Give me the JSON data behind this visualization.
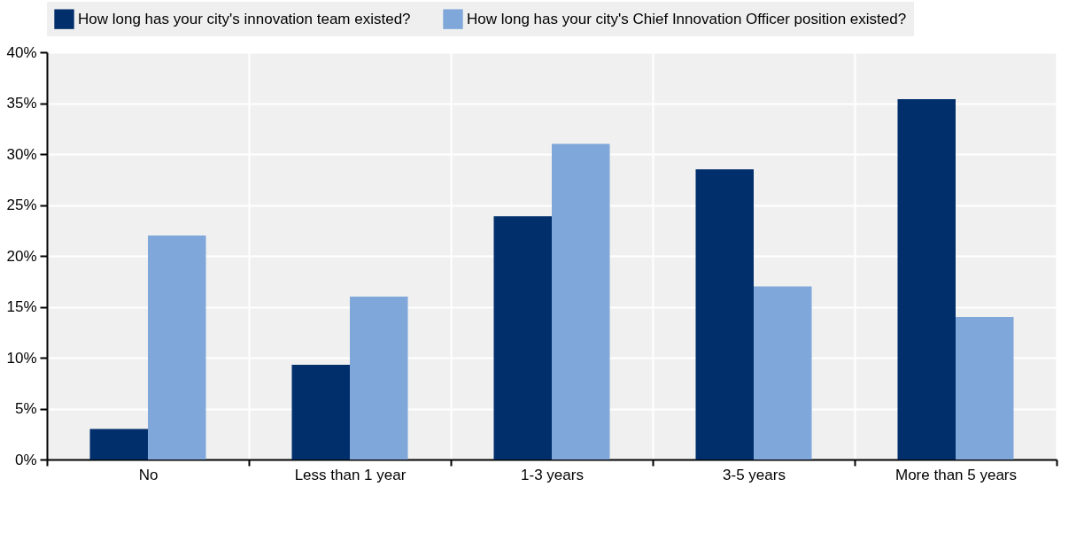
{
  "chart_data": {
    "type": "bar",
    "categories": [
      "No",
      "Less than 1 year",
      "1-3 years",
      "3-5 years",
      "More than 5 years"
    ],
    "series": [
      {
        "name": "How long has your city's innovation team existed?",
        "color": "#002f6c",
        "values": [
          3,
          9.3,
          23.9,
          28.5,
          35.4
        ]
      },
      {
        "name": "How long has your city's Chief Innovation Officer position existed?",
        "color": "#7fa7d9",
        "values": [
          22,
          16,
          31,
          17,
          14
        ]
      }
    ],
    "ylim": [
      0,
      40
    ],
    "yticks": [
      {
        "value": 0,
        "label": "0%"
      },
      {
        "value": 5,
        "label": "5%"
      },
      {
        "value": 10,
        "label": "10%"
      },
      {
        "value": 15,
        "label": "15%"
      },
      {
        "value": 20,
        "label": "20%"
      },
      {
        "value": 25,
        "label": "25%"
      },
      {
        "value": 30,
        "label": "30%"
      },
      {
        "value": 35,
        "label": "35%"
      },
      {
        "value": 40,
        "label": "40%"
      }
    ],
    "grid": true,
    "legend": "top"
  }
}
